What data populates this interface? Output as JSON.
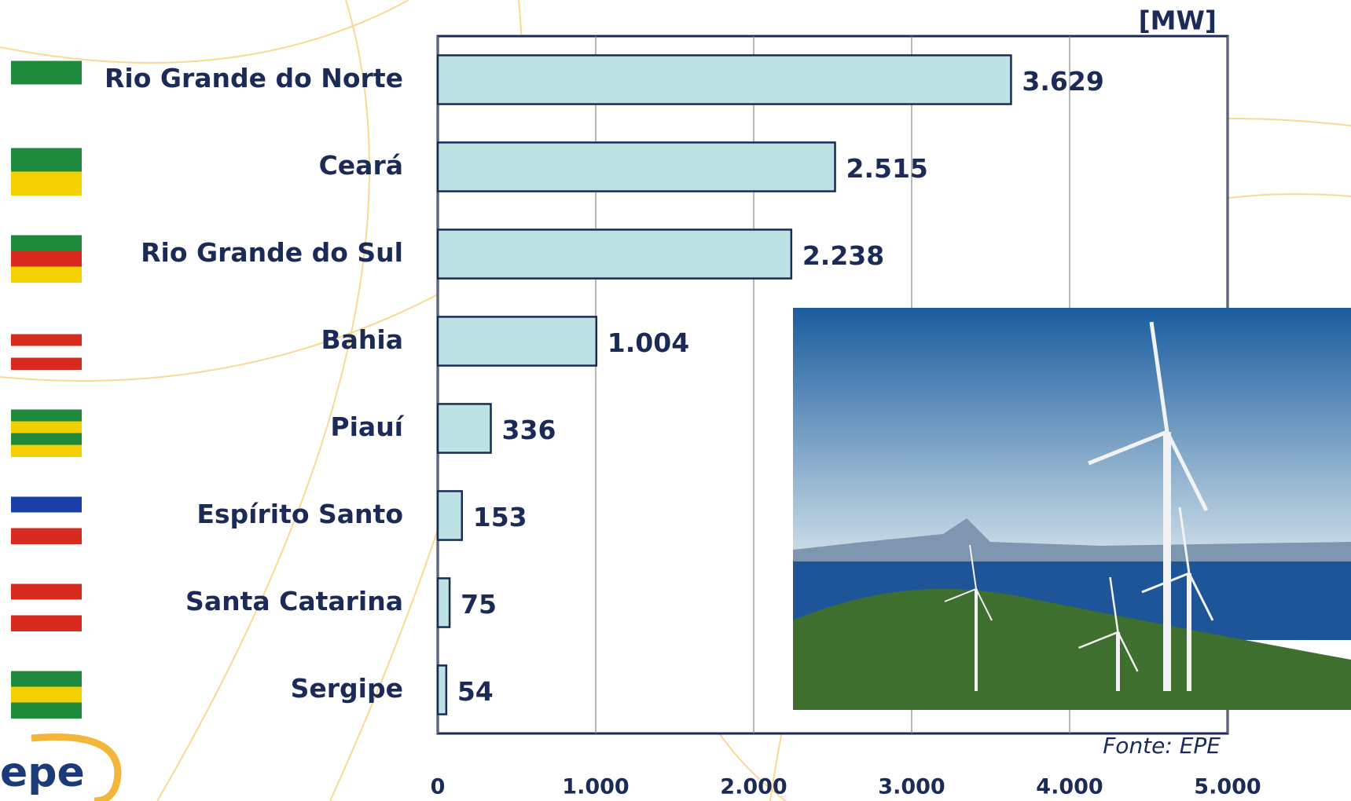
{
  "chart_data": {
    "type": "bar",
    "orientation": "horizontal",
    "unit_label": "[MW]",
    "source": "Fonte: EPE",
    "logo": "epe",
    "categories": [
      "Rio Grande do Norte",
      "Ceará",
      "Rio Grande do Sul",
      "Bahia",
      "Piauí",
      "Espírito Santo",
      "Santa Catarina",
      "Sergipe"
    ],
    "values": [
      3629,
      2515,
      2238,
      1004,
      336,
      153,
      75,
      54
    ],
    "value_labels": [
      "3.629",
      "2.515",
      "2.238",
      "1.004",
      "336",
      "153",
      "75",
      "54"
    ],
    "color": "#bde2e4",
    "xlim": [
      0,
      5000
    ],
    "xticks": [
      0,
      {
        "value": 1000,
        "label": "1.000"
      },
      {
        "value": 2000,
        "label": "2.000"
      },
      {
        "value": 3000,
        "label": "3.000"
      },
      {
        "value": 4000,
        "label": "4.000"
      },
      {
        "value": 5000,
        "label": "5.000"
      }
    ],
    "grid": true
  }
}
